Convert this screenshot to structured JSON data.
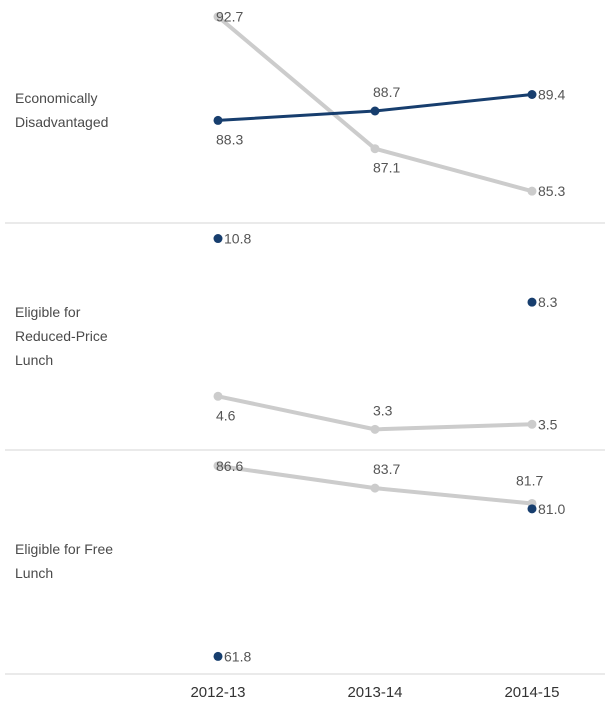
{
  "chart_data": {
    "type": "line",
    "categories": [
      "2012-13",
      "2013-14",
      "2014-15"
    ],
    "colors": {
      "dark": "#173e6e",
      "light": "#cccccc"
    },
    "panels": [
      {
        "label_lines": [
          "Economically",
          "Disadvantaged"
        ],
        "ylim": [
          84.5,
          92.9
        ],
        "series": [
          {
            "color_key": "dark",
            "values": [
              88.3,
              88.7,
              89.4
            ],
            "labels": [
              "88.3",
              "88.7",
              "89.4"
            ]
          },
          {
            "color_key": "light",
            "values": [
              92.7,
              87.1,
              85.3
            ],
            "labels": [
              "92.7",
              "87.1",
              "85.3"
            ]
          }
        ]
      },
      {
        "label_lines": [
          "Eligible for",
          "Reduced-Price",
          "Lunch"
        ],
        "ylim": [
          3.0,
          10.9
        ],
        "series": [
          {
            "color_key": "dark",
            "values": [
              10.8,
              null,
              8.3
            ],
            "labels": [
              "10.8",
              "",
              "8.3"
            ]
          },
          {
            "color_key": "light",
            "values": [
              4.6,
              3.3,
              3.5
            ],
            "labels": [
              "4.6",
              "3.3",
              "3.5"
            ]
          }
        ]
      },
      {
        "label_lines": [
          "Eligible for Free",
          "Lunch"
        ],
        "ylim": [
          61.2,
          87.1
        ],
        "series": [
          {
            "color_key": "dark",
            "values": [
              61.8,
              null,
              81.0
            ],
            "labels": [
              "61.8",
              "",
              "81.0"
            ]
          },
          {
            "color_key": "light",
            "values": [
              86.6,
              83.7,
              81.7
            ],
            "labels": [
              "86.6",
              "83.7",
              "81.7"
            ]
          }
        ]
      }
    ]
  }
}
